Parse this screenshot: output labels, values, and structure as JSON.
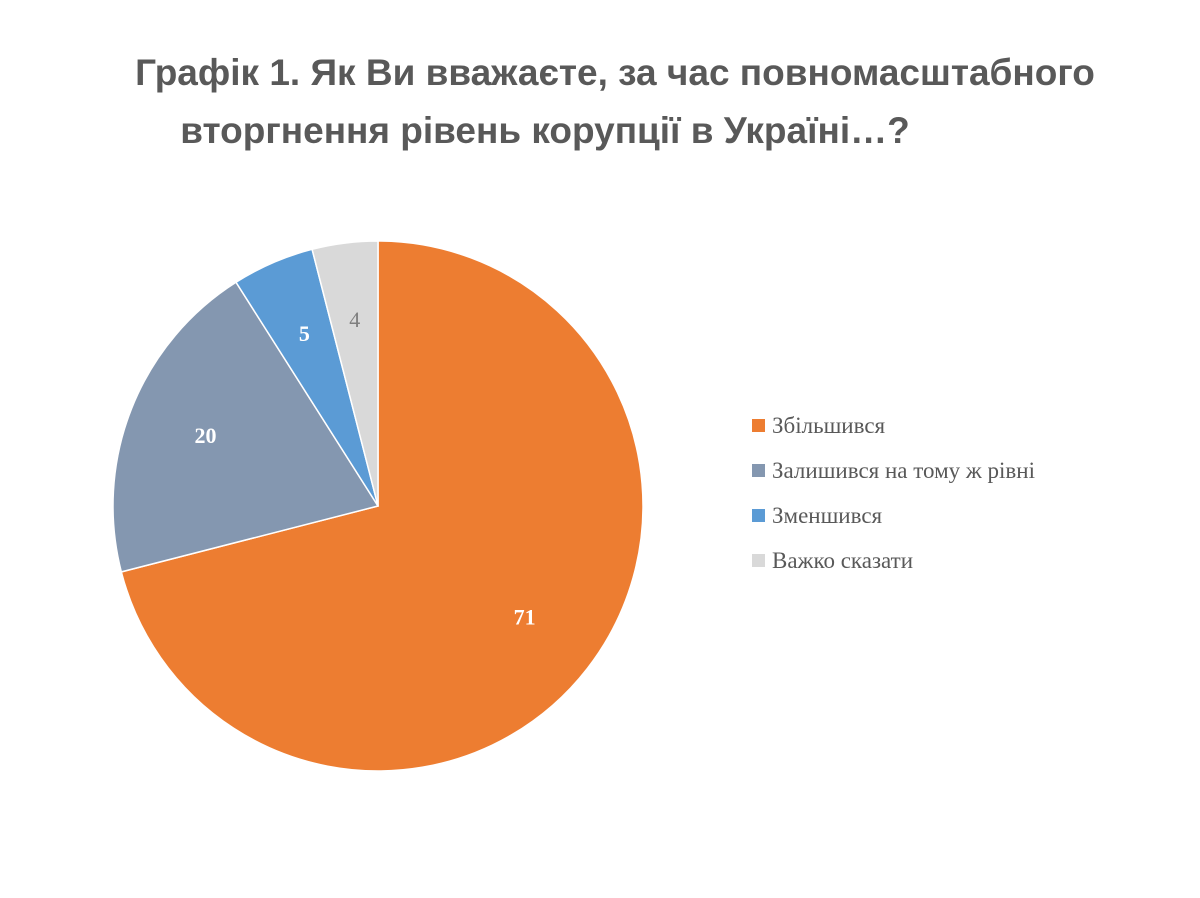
{
  "title": {
    "line1": "Графік 1. Як Ви вважаєте, за час повномасштабного",
    "line2": "вторгнення рівень корупції в Україні…?"
  },
  "chart_data": {
    "type": "pie",
    "title": "Графік 1. Як Ви вважаєте, за час повномасштабного вторгнення рівень корупції в Україні…?",
    "legend_position": "right",
    "slices": [
      {
        "label": "Збільшився",
        "value": 71,
        "color": "#ED7D31",
        "label_color": "#FFFFFF"
      },
      {
        "label": "Залишився на тому ж рівні",
        "value": 20,
        "color": "#8497B0",
        "label_color": "#FFFFFF"
      },
      {
        "label": "Зменшився",
        "value": 5,
        "color": "#5B9BD5",
        "label_color": "#FFFFFF"
      },
      {
        "label": "Важко сказати",
        "value": 4,
        "color": "#D9D9D9",
        "label_color": "#7F7F7F"
      }
    ]
  }
}
